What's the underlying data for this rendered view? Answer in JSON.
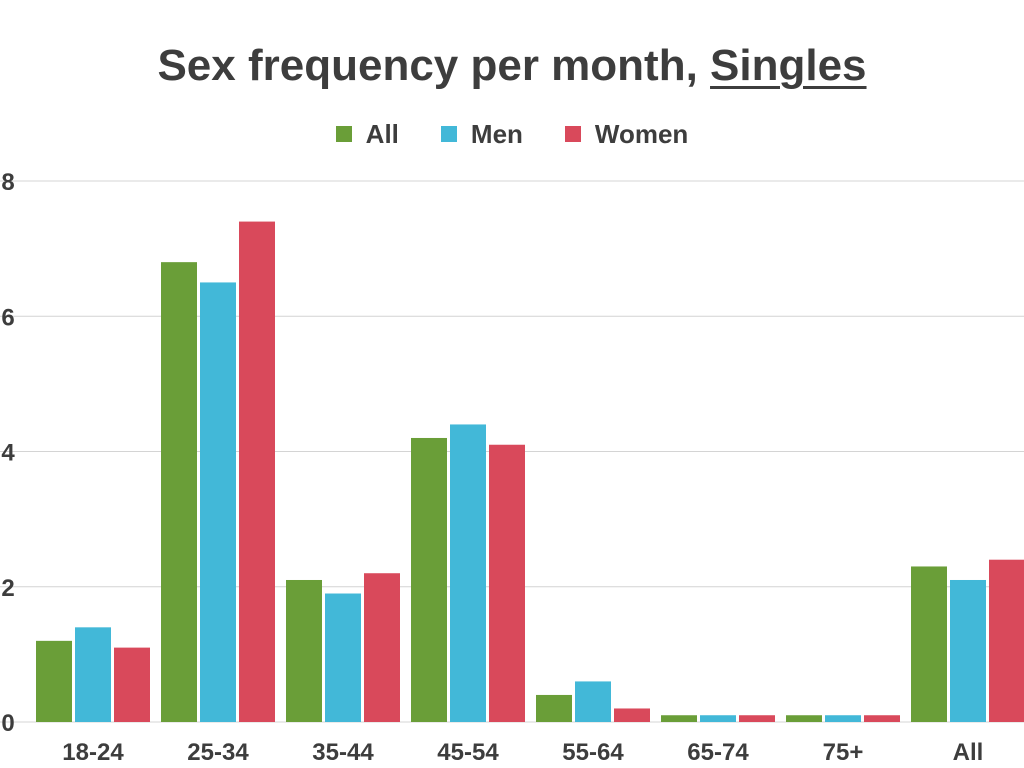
{
  "chart_data": {
    "type": "bar",
    "title": "Sex frequency per month, ",
    "title_emphasis": "Singles",
    "xlabel": "",
    "ylabel": "",
    "categories": [
      "18-24",
      "25-34",
      "35-44",
      "45-54",
      "55-64",
      "65-74",
      "75+",
      "All"
    ],
    "series": [
      {
        "name": "All",
        "color": "#6a9e38",
        "values": [
          1.2,
          6.8,
          2.1,
          4.2,
          0.4,
          0.1,
          0.1,
          2.3
        ]
      },
      {
        "name": "Men",
        "color": "#42b8d8",
        "values": [
          1.4,
          6.5,
          1.9,
          4.4,
          0.6,
          0.1,
          0.1,
          2.1
        ]
      },
      {
        "name": "Women",
        "color": "#d9495b",
        "values": [
          1.1,
          7.4,
          2.2,
          4.1,
          0.2,
          0.1,
          0.1,
          2.4
        ]
      }
    ],
    "ylim": [
      0,
      8
    ],
    "yticks": [
      "0",
      "2",
      "4",
      "6",
      "8"
    ],
    "grid": true,
    "legend_position": "top-center"
  }
}
